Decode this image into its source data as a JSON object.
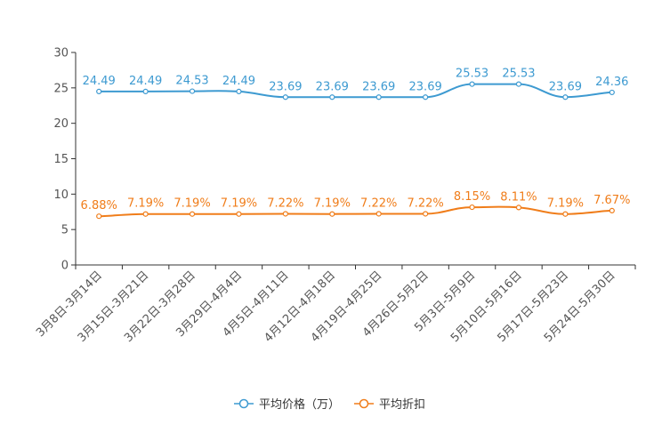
{
  "chart_data": {
    "type": "line",
    "title": "",
    "xlabel": "",
    "ylabel": "",
    "ylim": [
      0,
      30
    ],
    "yticks": [
      0,
      5,
      10,
      15,
      20,
      25,
      30
    ],
    "grid": false,
    "legend_position": "bottom-center",
    "categories": [
      "3月8日-3月14日",
      "3月15日-3月21日",
      "3月22日-3月28日",
      "3月29日-4月4日",
      "4月5日-4月11日",
      "4月12日-4月18日",
      "4月19日-4月25日",
      "4月26日-5月2日",
      "5月3日-5月9日",
      "5月10日-5月16日",
      "5月17日-5月23日",
      "5月24日-5月30日"
    ],
    "series": [
      {
        "name": "平均价格（万）",
        "color": "#3d9ad1",
        "smooth": true,
        "values": [
          24.49,
          24.49,
          24.53,
          24.49,
          23.69,
          23.69,
          23.69,
          23.69,
          25.53,
          25.53,
          23.69,
          24.36
        ],
        "labels": [
          "24.49",
          "24.49",
          "24.53",
          "24.49",
          "23.69",
          "23.69",
          "23.69",
          "23.69",
          "25.53",
          "25.53",
          "23.69",
          "24.36"
        ]
      },
      {
        "name": "平均折扣",
        "color": "#f07d1a",
        "smooth": true,
        "values": [
          6.88,
          7.19,
          7.19,
          7.19,
          7.22,
          7.19,
          7.22,
          7.22,
          8.15,
          8.11,
          7.19,
          7.67
        ],
        "labels": [
          "6.88%",
          "7.19%",
          "7.19%",
          "7.19%",
          "7.22%",
          "7.19%",
          "7.22%",
          "7.22%",
          "8.15%",
          "8.11%",
          "7.19%",
          "7.67%"
        ]
      }
    ]
  }
}
